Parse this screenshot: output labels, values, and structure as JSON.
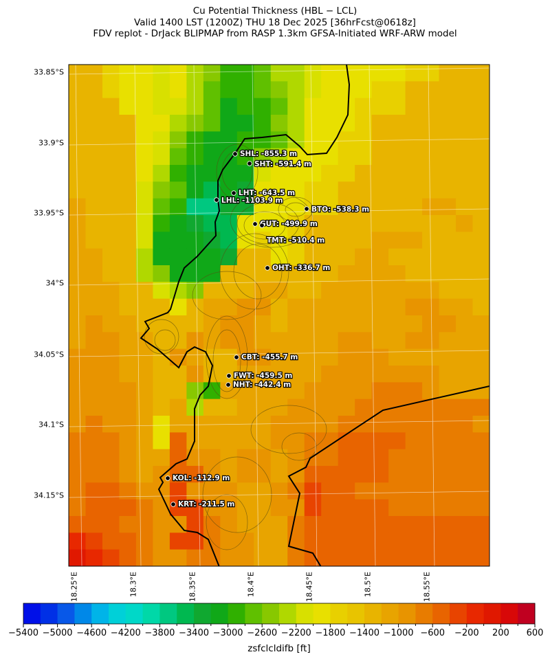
{
  "title": {
    "line1": "Cu Potential Thickness (HBL − LCL)",
    "line2": "Valid 1400 LST (1200Z) THU 18 Dec 2025 [36hrFcst@0618z]",
    "line3": "FDV replot - DrJack BLIPMAP from RASP 1.3km GFSA-Initiated WRF-ARW model"
  },
  "chart_data": {
    "type": "heatmap",
    "units": "ft",
    "colorbar": {
      "label": "zsfclcldifb [ft]",
      "min": -5400,
      "max": 600,
      "step": 200,
      "tick_labels": [
        "−5400",
        "−5000",
        "−4600",
        "−4200",
        "−3800",
        "−3400",
        "−3000",
        "−2600",
        "−2200",
        "−1800",
        "−1400",
        "−1000",
        "−600",
        "−200",
        "200",
        "600"
      ],
      "colors": [
        "#0010e8",
        "#0030e6",
        "#0858e8",
        "#0088e8",
        "#00b4e8",
        "#00d0d8",
        "#00d8c8",
        "#00d8a8",
        "#00c880",
        "#00b850",
        "#10a830",
        "#10a818",
        "#30b000",
        "#60c000",
        "#88c800",
        "#b0d800",
        "#d8e000",
        "#e8e000",
        "#e8d000",
        "#e8c400",
        "#e8b400",
        "#e8a400",
        "#e89400",
        "#e87c00",
        "#e86400",
        "#e84400",
        "#e82800",
        "#e01800",
        "#d80808",
        "#c00020"
      ]
    },
    "lat_ticks": [
      "33.85°S",
      "33.9°S",
      "33.95°S",
      "34°S",
      "34.05°S",
      "34.1°S",
      "34.15°S"
    ],
    "lon_ticks": [
      "18.25°E",
      "18.3°E",
      "18.35°E",
      "18.4°E",
      "18.45°E",
      "18.5°E",
      "18.55°E"
    ],
    "grid_bins_legend": "each char = colorbar bin index (0-9, A=10 ... T=29), rows north to south",
    "grid": [
      "KKIHHGHFECCDFFGHHHHHIIKKK",
      "KKIHHGHFDCCDEFGHHHIIKKKKK",
      "KKKHHGGFDBCCDFHHHIIIKKKKK",
      "KKKKHHFEDBBCEFHHHIKKKKKKK",
      "KKKKHGECBBCCDFHHIIKKKKKKK",
      "KKKKHGDCBBCEFHHHIIKKKKKKK",
      "KKKKHFCBBBBGHHHIIKKKKKKKK",
      "KKKKGEDB9BAHHHIIKKKKKKKKK",
      "LKKKGDC88AAHHHIIKKKKKLLKK",
      "LKKKGCBA99HHHIKKKKKKKKKLK",
      "LKKKGBBBA9HIHIKKKKLLLKKKK",
      "LLKKFBBBBAKKHIKKKLLKKKKKK",
      "LLKKFEBBBKKKKKKKLLLLKKKKK",
      "LLLKKGFEKKKLLKKLLLLLLLKKK",
      "LLLKKKHKLLMMKLLLLLLLMMLLK",
      "LMLLKKKKLMMLKLLLLLLLLMMLL",
      "LMMLLKKMLMMLLLLLMMLLMMLLL",
      "MMMLLKMLKKMMLLLLMMMLLLLLL",
      "MMMLLKKMKKLLLLLMMMMMMMLLL",
      "MMMMLKKECLLLLLMMMMNNNMLLL",
      "MMMMLKLFKKLLLMMMMNNNNNNNN",
      "MNMMLHLLLLLLMMMMNNNNNNNNM",
      "NNNMLHOLLLLLMMNNOOOONNNNN",
      "NNNMLLOMMLMMLMNNOOONNNNNN",
      "NNNMLMOOMLMMLMOOOOONNNNNN",
      "NOONMMPMMMLLMNPOONNNNNNNN",
      "NOOONMPPMMLLMMPOOOONNNNNN",
      "OOONNMMPNMLLLNOOOOOOOOOOO",
      "QPOONMPPNMMLLNOOOOOOOOOOO",
      "RQPONMMNNMMLLNOOOOOOOOOOO"
    ]
  },
  "sites": [
    {
      "label": "SHL: -855.3 m"
    },
    {
      "label": "SHT: -591.4 m"
    },
    {
      "label": "LHT: -643.5 m"
    },
    {
      "label": "LHL: -1103.9 m"
    },
    {
      "label": "BTO: -538.3 m"
    },
    {
      "label": "GUT: -499.9 m"
    },
    {
      "label": "TMT: -510.4 m"
    },
    {
      "label": "OHT: -336.7 m"
    },
    {
      "label": "CBT: -455.7 m"
    },
    {
      "label": "FWT: -459.5 m"
    },
    {
      "label": "NHT: -442.4 m"
    },
    {
      "label": "KOL: -112.9 m"
    },
    {
      "label": "KRT: -211.5 m"
    }
  ]
}
